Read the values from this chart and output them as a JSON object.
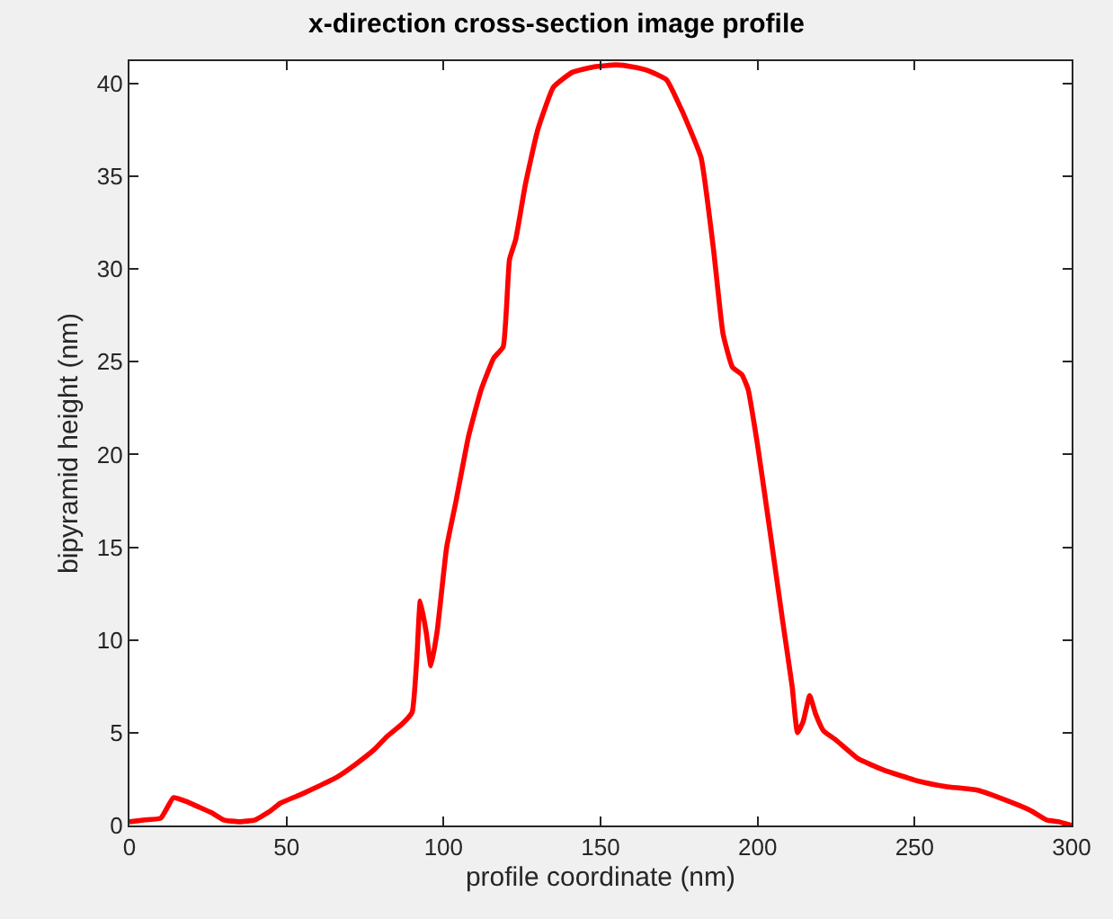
{
  "chart_data": {
    "type": "line",
    "title": "x-direction cross-section image profile",
    "xlabel": "profile coordinate (nm)",
    "ylabel": "bipyramid height (nm)",
    "x": [
      0,
      5,
      10,
      14,
      18,
      22,
      26,
      30,
      35,
      40,
      45,
      48,
      55,
      60,
      66,
      72,
      78,
      82,
      87,
      90,
      91.5,
      92.6,
      94.5,
      96,
      98,
      101,
      104,
      108,
      112,
      116,
      119,
      121,
      123,
      126,
      130,
      135,
      141,
      148,
      155,
      160,
      165,
      171,
      176,
      182,
      186,
      189,
      192,
      195,
      197,
      200,
      204,
      208,
      211,
      212.7,
      214.5,
      216.6,
      218.5,
      221,
      225,
      232,
      240,
      251,
      260,
      270,
      280,
      287,
      292,
      296,
      300
    ],
    "series": [
      {
        "color": "#ff0000",
        "values": [
          0.2,
          0.3,
          0.4,
          1.5,
          1.3,
          1.0,
          0.7,
          0.3,
          0.2,
          0.3,
          0.8,
          1.2,
          1.7,
          2.1,
          2.6,
          3.3,
          4.1,
          4.8,
          5.5,
          6.1,
          9,
          12.1,
          10.4,
          8.6,
          10.5,
          15,
          17.5,
          21,
          23.5,
          25.2,
          25.8,
          30.5,
          31.6,
          34.5,
          37.5,
          39.8,
          40.6,
          40.9,
          41.0,
          40.9,
          40.7,
          40.2,
          38.5,
          36,
          31,
          26.5,
          24.7,
          24.3,
          23.5,
          20.5,
          15.8,
          11,
          7.5,
          5.0,
          5.6,
          7.0,
          6.0,
          5.1,
          4.6,
          3.6,
          3.0,
          2.4,
          2.1,
          1.9,
          1.3,
          0.8,
          0.3,
          0.2,
          0.0
        ]
      }
    ],
    "xlim": [
      0,
      300
    ],
    "ylim": [
      0,
      41.2
    ],
    "xticks": [
      0,
      50,
      100,
      150,
      200,
      250,
      300
    ],
    "yticks": [
      0,
      5,
      10,
      15,
      20,
      25,
      30,
      35,
      40
    ],
    "marker": "none",
    "line_style": "solid"
  }
}
